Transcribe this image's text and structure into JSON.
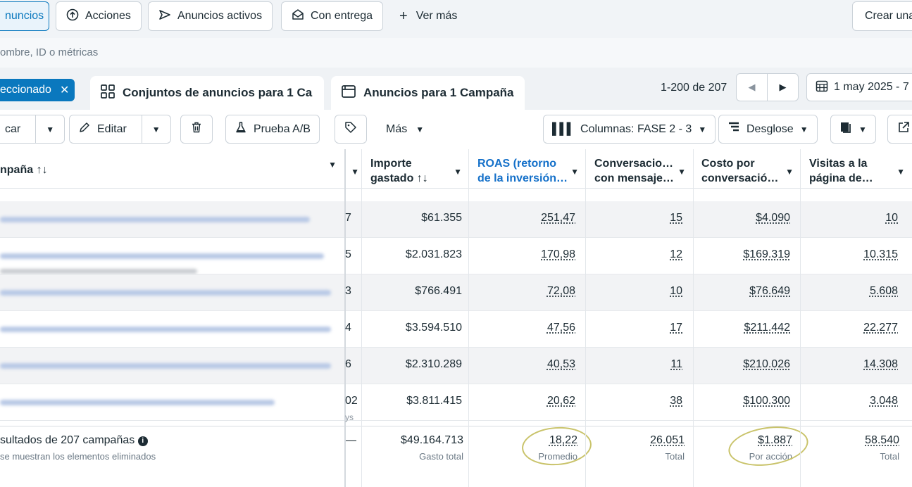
{
  "top_filters": {
    "items": [
      {
        "label": "nuncios",
        "icon": "ads-icon"
      },
      {
        "label": "Acciones",
        "icon": "arrow-up-circle-icon"
      },
      {
        "label": "Anuncios activos",
        "icon": "send-icon"
      },
      {
        "label": "Con entrega",
        "icon": "envelope-icon"
      }
    ],
    "more_label": "Ver más",
    "create_label": "Crear una"
  },
  "search": {
    "placeholder": "ombre, ID o métricas"
  },
  "tabs": {
    "selected_chip": "eccionado",
    "ad_sets": "Conjuntos de anuncios para 1 Ca",
    "ads": "Anuncios para 1 Campaña"
  },
  "pagination": {
    "range": "1-200 de 207",
    "date": "1 may 2025 - 7"
  },
  "toolbar": {
    "duplicate_fragment": "car",
    "edit": "Editar",
    "ab_test": "Prueba A/B",
    "more": "Más",
    "columns": "Columnas: FASE 2 - 3",
    "breakdown": "Desglose"
  },
  "columns": {
    "campaign": "npaña ↑↓",
    "spent_l1": "Importe",
    "spent_l2": "gastado ↑↓",
    "roas_l1": "ROAS (retorno",
    "roas_l2": "de la inversión…",
    "conv_l1": "Conversacio…",
    "conv_l2": "con mensaje…",
    "cost_l1": "Costo por",
    "cost_l2": "conversació…",
    "visits_l1": "Visitas a la",
    "visits_l2": "página de…"
  },
  "rows": [
    {
      "frag": "7",
      "spent": "$61.355",
      "roas": "251,47",
      "conv": "15",
      "cost": "$4.090",
      "visits": "10"
    },
    {
      "frag": "5",
      "spent": "$2.031.823",
      "roas": "170,98",
      "conv": "12",
      "cost": "$169.319",
      "visits": "10.315"
    },
    {
      "frag": "3",
      "spent": "$766.491",
      "roas": "72,08",
      "conv": "10",
      "cost": "$76.649",
      "visits": "5.608"
    },
    {
      "frag": "4",
      "spent": "$3.594.510",
      "roas": "47,56",
      "conv": "17",
      "cost": "$211.442",
      "visits": "22.277"
    },
    {
      "frag": "6",
      "spent": "$2.310.289",
      "roas": "40,53",
      "conv": "11",
      "cost": "$210.026",
      "visits": "14.308"
    },
    {
      "frag": "02",
      "frag_sub": "ys",
      "spent": "$3.811.415",
      "roas": "20,62",
      "conv": "38",
      "cost": "$100.300",
      "visits": "3.048"
    }
  ],
  "totals": {
    "label": "sultados de 207 campañas",
    "sub": "se muestran los elementos eliminados",
    "dash": "—",
    "spent": "$49.164.713",
    "spent_caption": "Gasto total",
    "roas": "18,22",
    "roas_caption": "Promedio",
    "conv": "26.051",
    "conv_caption": "Total",
    "cost": "$1.887",
    "cost_caption": "Por acción",
    "visits": "58.540",
    "visits_caption": "Total"
  }
}
